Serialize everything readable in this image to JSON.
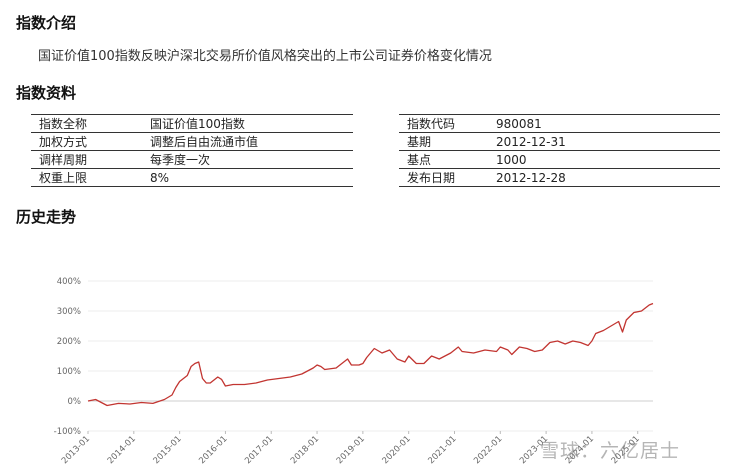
{
  "sections": {
    "intro_title": "指数介绍",
    "intro_text": "国证价值100指数反映沪深北交易所价值风格突出的上市公司证券价格变化情况",
    "info_title": "指数资料",
    "history_title": "历史走势"
  },
  "info_left": [
    {
      "label": "指数全称",
      "value": "国证价值100指数"
    },
    {
      "label": "加权方式",
      "value": "调整后自由流通市值"
    },
    {
      "label": "调样周期",
      "value": "每季度一次"
    },
    {
      "label": "权重上限",
      "value": "8%"
    }
  ],
  "info_right": [
    {
      "label": "指数代码",
      "value": "980081"
    },
    {
      "label": "基期",
      "value": "2012-12-31"
    },
    {
      "label": "基点",
      "value": "1000"
    },
    {
      "label": "发布日期",
      "value": "2012-12-28"
    }
  ],
  "watermark": "雪球：六亿居士",
  "chart_data": {
    "type": "line",
    "title": "",
    "xlabel": "",
    "ylabel": "",
    "ylim": [
      -100,
      400
    ],
    "y_ticks": [
      "-100%",
      "0%",
      "100%",
      "200%",
      "300%",
      "400%"
    ],
    "x_ticks": [
      "2013-01",
      "2014-01",
      "2015-01",
      "2016-01",
      "2017-01",
      "2018-01",
      "2019-01",
      "2020-01",
      "2021-01",
      "2022-01",
      "2023-01",
      "2024-01",
      "2025-01"
    ],
    "grid": true,
    "line_color": "#c23531",
    "series": [
      {
        "name": "",
        "x": [
          "2013-01",
          "2013-03",
          "2013-06",
          "2013-09",
          "2013-12",
          "2014-03",
          "2014-06",
          "2014-09",
          "2014-11",
          "2014-12",
          "2015-01",
          "2015-03",
          "2015-04",
          "2015-05",
          "2015-06",
          "2015-07",
          "2015-08",
          "2015-09",
          "2015-11",
          "2015-12",
          "2016-01",
          "2016-03",
          "2016-06",
          "2016-09",
          "2016-12",
          "2017-03",
          "2017-06",
          "2017-09",
          "2017-12",
          "2018-01",
          "2018-02",
          "2018-03",
          "2018-06",
          "2018-09",
          "2018-10",
          "2018-12",
          "2019-01",
          "2019-02",
          "2019-04",
          "2019-06",
          "2019-08",
          "2019-10",
          "2019-12",
          "2020-01",
          "2020-03",
          "2020-05",
          "2020-07",
          "2020-09",
          "2020-12",
          "2021-02",
          "2021-03",
          "2021-06",
          "2021-09",
          "2021-12",
          "2022-01",
          "2022-03",
          "2022-04",
          "2022-06",
          "2022-08",
          "2022-10",
          "2022-12",
          "2023-02",
          "2023-04",
          "2023-06",
          "2023-08",
          "2023-10",
          "2023-12",
          "2024-01",
          "2024-02",
          "2024-04",
          "2024-06",
          "2024-08",
          "2024-09",
          "2024-10",
          "2024-12",
          "2025-02",
          "2025-04",
          "2025-05"
        ],
        "values": [
          0,
          5,
          -15,
          -8,
          -10,
          -5,
          -8,
          5,
          20,
          45,
          65,
          85,
          115,
          125,
          130,
          75,
          60,
          60,
          80,
          72,
          50,
          55,
          55,
          60,
          70,
          75,
          80,
          90,
          110,
          120,
          115,
          105,
          110,
          140,
          120,
          120,
          125,
          145,
          175,
          160,
          170,
          140,
          130,
          150,
          125,
          125,
          150,
          140,
          160,
          180,
          165,
          160,
          170,
          165,
          180,
          170,
          155,
          180,
          175,
          165,
          170,
          195,
          200,
          190,
          200,
          195,
          185,
          200,
          225,
          235,
          250,
          265,
          230,
          270,
          295,
          300,
          320,
          325
        ]
      }
    ]
  }
}
